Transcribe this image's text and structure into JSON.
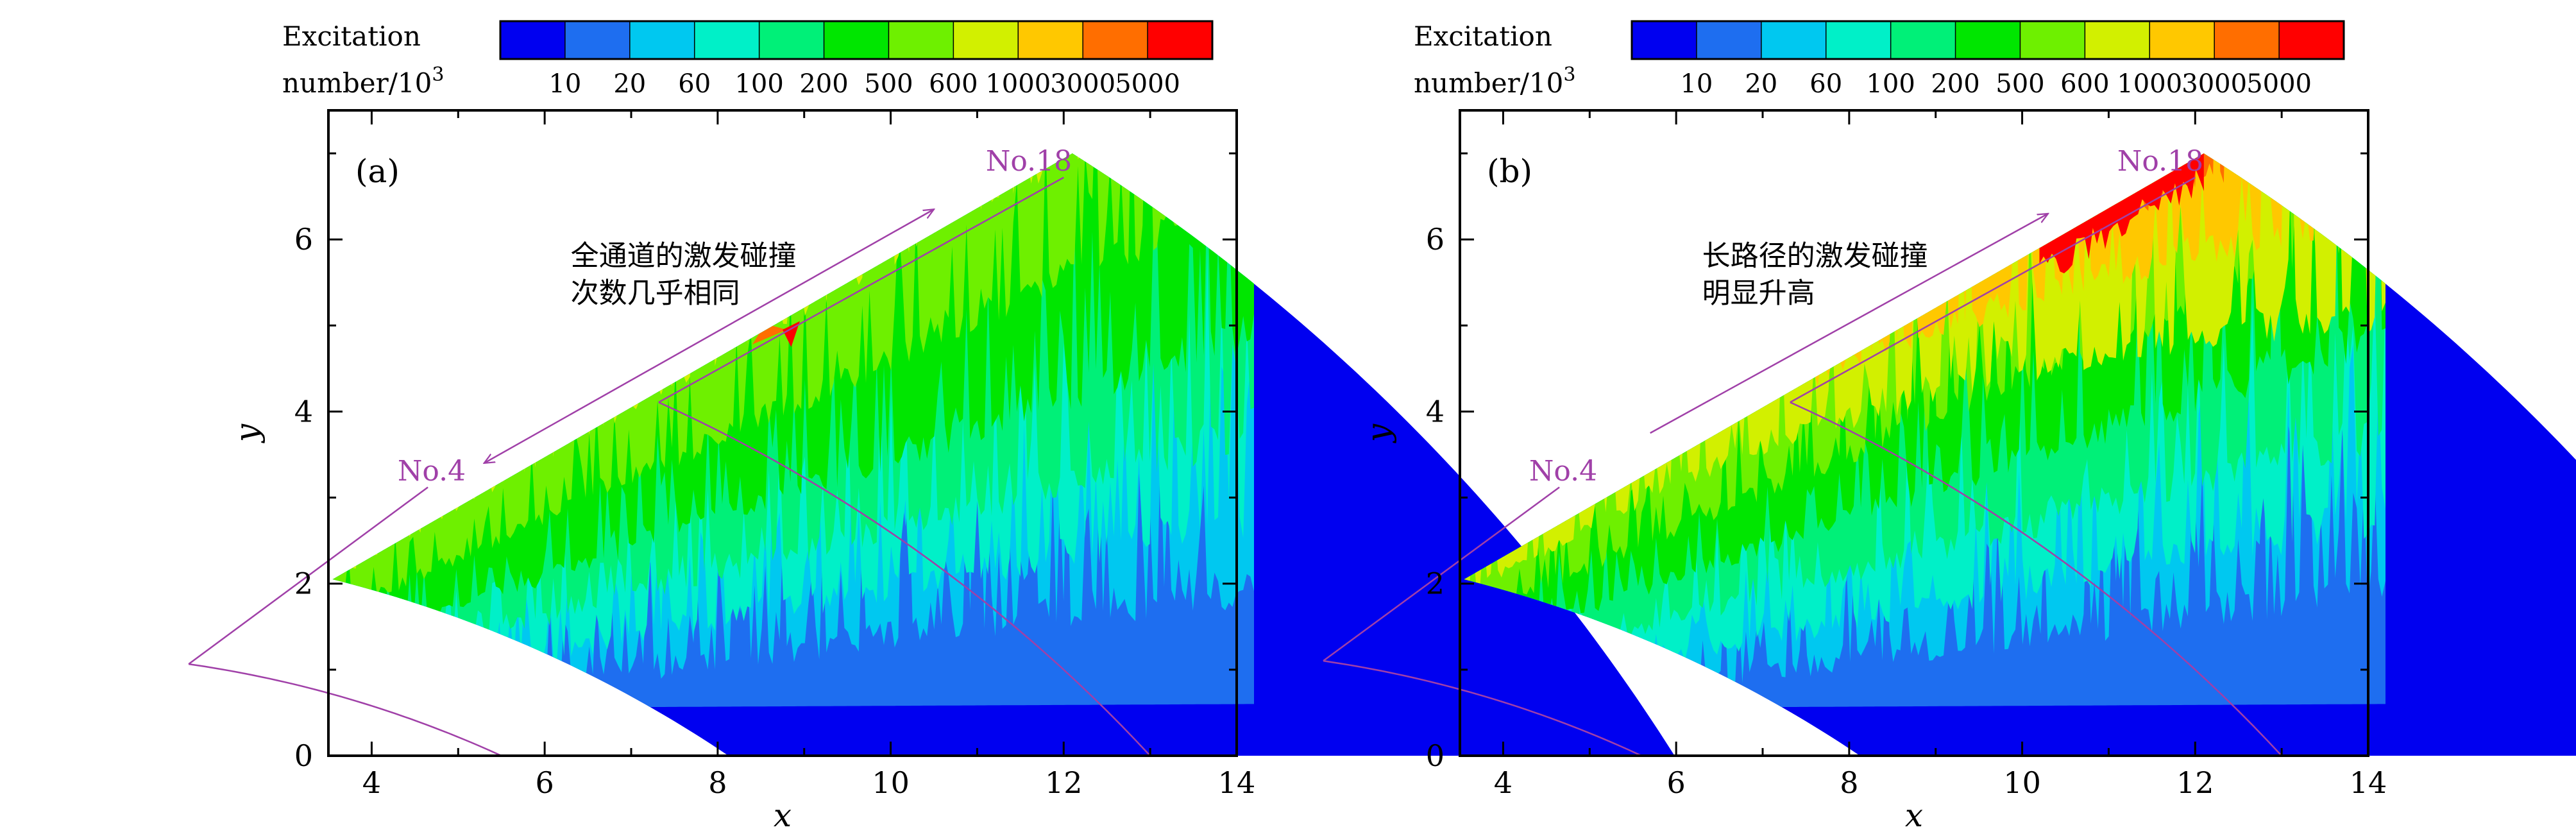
{
  "chart_data": [
    {
      "type": "heatmap",
      "panel_label": "(a)",
      "xlabel": "x",
      "ylabel": "y",
      "xlim": [
        3.5,
        14
      ],
      "ylim": [
        0,
        7.5
      ],
      "xticks": [
        4,
        6,
        8,
        10,
        12,
        14
      ],
      "yticks": [
        0,
        2,
        4,
        6
      ],
      "colorbar": {
        "title_line1": "Excitation",
        "title_line2": "number/10",
        "title_sup": "3",
        "colors": [
          "#0000f0",
          "#1e6ef0",
          "#00c8f0",
          "#00f0c8",
          "#00f078",
          "#00e600",
          "#6ef000",
          "#d2f000",
          "#ffc800",
          "#ff6e00",
          "#ff0000"
        ],
        "tick_labels": [
          "10",
          "20",
          "60",
          "100",
          "200",
          "500",
          "600",
          "1000",
          "3000",
          "5000"
        ]
      },
      "sector": {
        "arc_center_x": 0,
        "arc_center_y": -12,
        "apex_x": 12.1,
        "apex_y": 7.0,
        "wall_start_x": 3.55,
        "wall_start_y": 2.05
      },
      "annotations": [
        {
          "text_line1": "全通道的激发碰撞",
          "text_line2": "次数几乎相同",
          "x": 6.3,
          "y": 5.7,
          "arrow": "both",
          "arrow_from": [
            5.3,
            3.4
          ],
          "arrow_to": [
            10.5,
            6.35
          ]
        }
      ],
      "streamlines": [
        {
          "label": "No.4",
          "x_bottom": 5.5,
          "label_x": 4.3,
          "label_y": 3.2
        },
        {
          "label": "No.18",
          "x_bottom": 13.0,
          "label_x": 11.1,
          "label_y": 6.8
        }
      ],
      "description_regime": "uniform"
    },
    {
      "type": "heatmap",
      "panel_label": "(b)",
      "xlabel": "x",
      "ylabel": "y",
      "xlim": [
        3.5,
        14
      ],
      "ylim": [
        0,
        7.5
      ],
      "xticks": [
        4,
        6,
        8,
        10,
        12,
        14
      ],
      "yticks": [
        0,
        2,
        4,
        6
      ],
      "colorbar": {
        "title_line1": "Excitation",
        "title_line2": "number/10",
        "title_sup": "3",
        "colors": [
          "#0000f0",
          "#1e6ef0",
          "#00c8f0",
          "#00f0c8",
          "#00f078",
          "#00e600",
          "#6ef000",
          "#d2f000",
          "#ffc800",
          "#ff6e00",
          "#ff0000"
        ],
        "tick_labels": [
          "10",
          "20",
          "60",
          "100",
          "200",
          "500",
          "600",
          "1000",
          "3000",
          "5000"
        ]
      },
      "sector": {
        "arc_center_x": 0,
        "arc_center_y": -12,
        "apex_x": 12.1,
        "apex_y": 7.0,
        "wall_start_x": 3.55,
        "wall_start_y": 2.05
      },
      "annotations": [
        {
          "text_line1": "长路径的激发碰撞",
          "text_line2": "明显升高",
          "x": 6.3,
          "y": 5.7,
          "arrow": "end",
          "arrow_from": [
            5.7,
            3.75
          ],
          "arrow_to": [
            10.3,
            6.3
          ]
        }
      ],
      "streamlines": [
        {
          "label": "No.4",
          "x_bottom": 5.6,
          "label_x": 4.3,
          "label_y": 3.2
        },
        {
          "label": "No.18",
          "x_bottom": 13.0,
          "label_x": 11.1,
          "label_y": 6.8
        }
      ],
      "description_regime": "increasing"
    }
  ]
}
